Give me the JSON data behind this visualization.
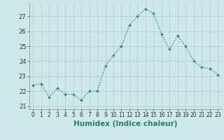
{
  "x": [
    0,
    1,
    2,
    3,
    4,
    5,
    6,
    7,
    8,
    9,
    10,
    11,
    12,
    13,
    14,
    15,
    16,
    17,
    18,
    19,
    20,
    21,
    22,
    23
  ],
  "y": [
    22.4,
    22.5,
    21.6,
    22.2,
    21.8,
    21.8,
    21.4,
    22.0,
    22.0,
    23.7,
    24.4,
    25.0,
    26.4,
    27.0,
    27.5,
    27.2,
    25.8,
    24.8,
    25.7,
    25.0,
    24.0,
    23.6,
    23.5,
    23.1
  ],
  "line_color": "#2d7a6e",
  "marker": "+",
  "bg_color": "#cce8e8",
  "grid_color_major": "#b0cccc",
  "grid_color_minor": "#daeaea",
  "xlabel": "Humidex (Indice chaleur)",
  "ylim": [
    20.8,
    27.9
  ],
  "yticks": [
    21,
    22,
    23,
    24,
    25,
    26,
    27
  ],
  "xticks": [
    0,
    1,
    2,
    3,
    4,
    5,
    6,
    7,
    8,
    9,
    10,
    11,
    12,
    13,
    14,
    15,
    16,
    17,
    18,
    19,
    20,
    21,
    22,
    23
  ],
  "tick_fontsize": 6,
  "xlabel_fontsize": 7.5,
  "linewidth": 1.0,
  "markersize": 3.5,
  "markeredgewidth": 1.0
}
